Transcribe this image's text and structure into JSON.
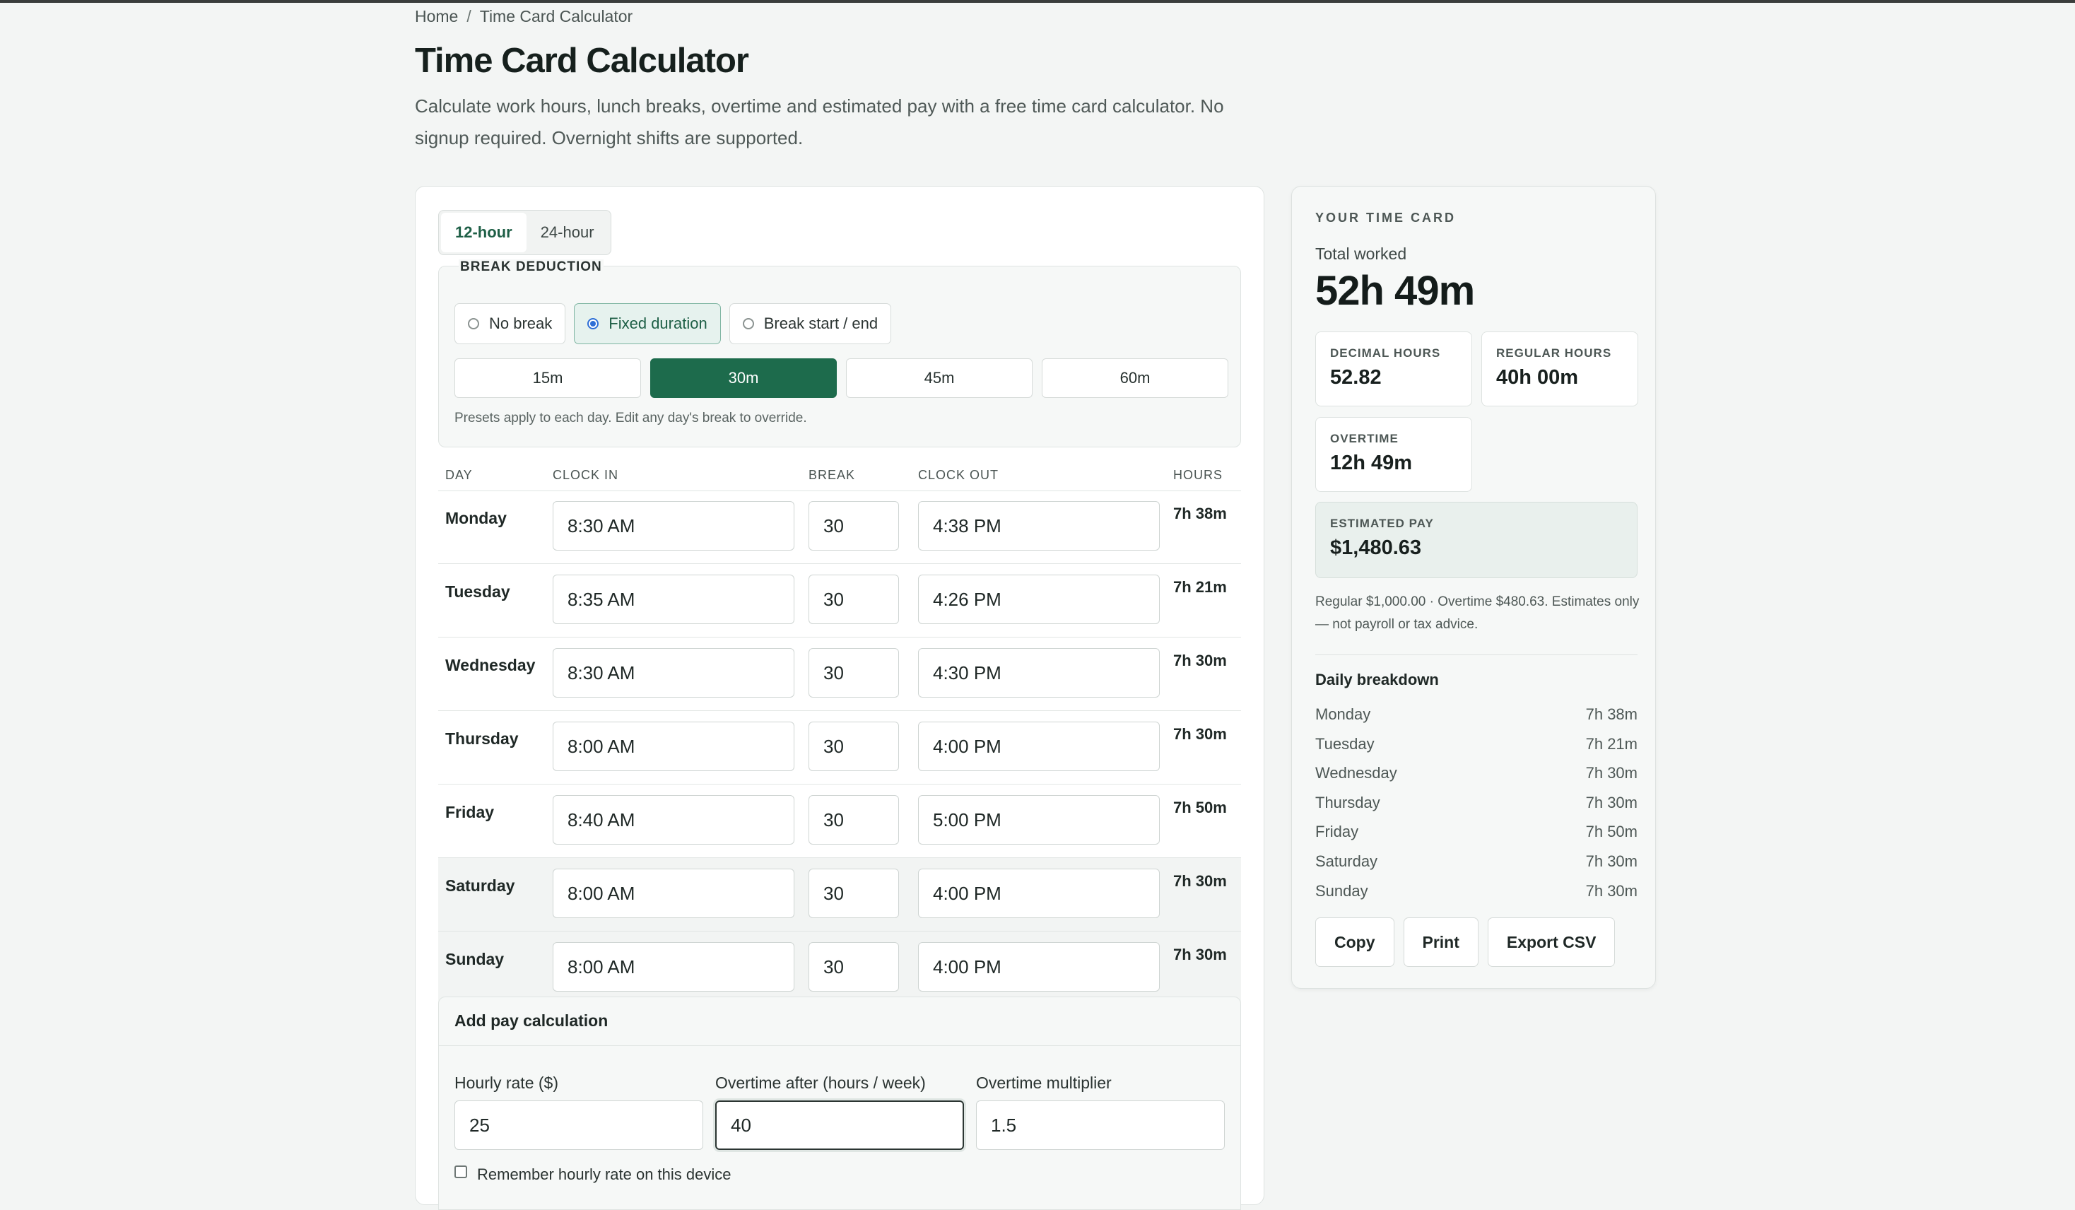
{
  "breadcrumb": {
    "home": "Home",
    "separator": "/",
    "current": "Time Card Calculator"
  },
  "page": {
    "title": "Time Card Calculator",
    "intro": "Calculate work hours, lunch breaks, overtime and estimated pay with a free time card calculator. No signup required. Overnight shifts are supported."
  },
  "format_tabs": [
    {
      "label": "12-hour",
      "active": true
    },
    {
      "label": "24-hour",
      "active": false
    }
  ],
  "break_deduction": {
    "legend": "BREAK DEDUCTION",
    "modes": [
      {
        "label": "No break",
        "selected": false
      },
      {
        "label": "Fixed duration",
        "selected": true
      },
      {
        "label": "Break start / end",
        "selected": false
      }
    ],
    "presets": [
      {
        "label": "15m",
        "active": false
      },
      {
        "label": "30m",
        "active": true
      },
      {
        "label": "45m",
        "active": false
      },
      {
        "label": "60m",
        "active": false
      }
    ],
    "note": "Presets apply to each day. Edit any day's break to override."
  },
  "table": {
    "headers": {
      "day": "DAY",
      "clock_in": "CLOCK IN",
      "break": "BREAK",
      "clock_out": "CLOCK OUT",
      "hours": "HOURS"
    },
    "rows": [
      {
        "day": "Monday",
        "clock_in": "8:30 AM",
        "break": "30",
        "clock_out": "4:38 PM",
        "hours": "7h 38m"
      },
      {
        "day": "Tuesday",
        "clock_in": "8:35 AM",
        "break": "30",
        "clock_out": "4:26 PM",
        "hours": "7h 21m"
      },
      {
        "day": "Wednesday",
        "clock_in": "8:30 AM",
        "break": "30",
        "clock_out": "4:30 PM",
        "hours": "7h 30m"
      },
      {
        "day": "Thursday",
        "clock_in": "8:00 AM",
        "break": "30",
        "clock_out": "4:00 PM",
        "hours": "7h 30m"
      },
      {
        "day": "Friday",
        "clock_in": "8:40 AM",
        "break": "30",
        "clock_out": "5:00 PM",
        "hours": "7h 50m"
      },
      {
        "day": "Saturday",
        "clock_in": "8:00 AM",
        "break": "30",
        "clock_out": "4:00 PM",
        "hours": "7h 30m"
      },
      {
        "day": "Sunday",
        "clock_in": "8:00 AM",
        "break": "30",
        "clock_out": "4:00 PM",
        "hours": "7h 30m"
      }
    ]
  },
  "pay": {
    "title": "Add pay calculation",
    "hourly_rate_label": "Hourly rate ($)",
    "hourly_rate_value": "25",
    "overtime_after_label": "Overtime after (hours / week)",
    "overtime_after_value": "40",
    "multiplier_label": "Overtime multiplier",
    "multiplier_value": "1.5",
    "remember_label": "Remember hourly rate on this device"
  },
  "summary": {
    "kicker": "YOUR TIME CARD",
    "total_label": "Total worked",
    "total_value": "52h 49m",
    "decimal_label": "DECIMAL HOURS",
    "decimal_value": "52.82",
    "regular_label": "REGULAR HOURS",
    "regular_value": "40h 00m",
    "overtime_label": "OVERTIME",
    "overtime_value": "12h 49m",
    "pay_label": "ESTIMATED PAY",
    "pay_value": "$1,480.63",
    "pay_note": "Regular $1,000.00 · Overtime $480.63. Estimates only — not payroll or tax advice.",
    "breakdown_title": "Daily breakdown",
    "breakdown": [
      {
        "day": "Monday",
        "hours": "7h 38m"
      },
      {
        "day": "Tuesday",
        "hours": "7h 21m"
      },
      {
        "day": "Wednesday",
        "hours": "7h 30m"
      },
      {
        "day": "Thursday",
        "hours": "7h 30m"
      },
      {
        "day": "Friday",
        "hours": "7h 50m"
      },
      {
        "day": "Saturday",
        "hours": "7h 30m"
      },
      {
        "day": "Sunday",
        "hours": "7h 30m"
      }
    ],
    "actions": {
      "copy": "Copy",
      "print": "Print",
      "export": "Export CSV"
    }
  },
  "colors": {
    "accent": "#1d6b4c",
    "background": "#f3f5f4",
    "radio": "#2f6fd6"
  }
}
